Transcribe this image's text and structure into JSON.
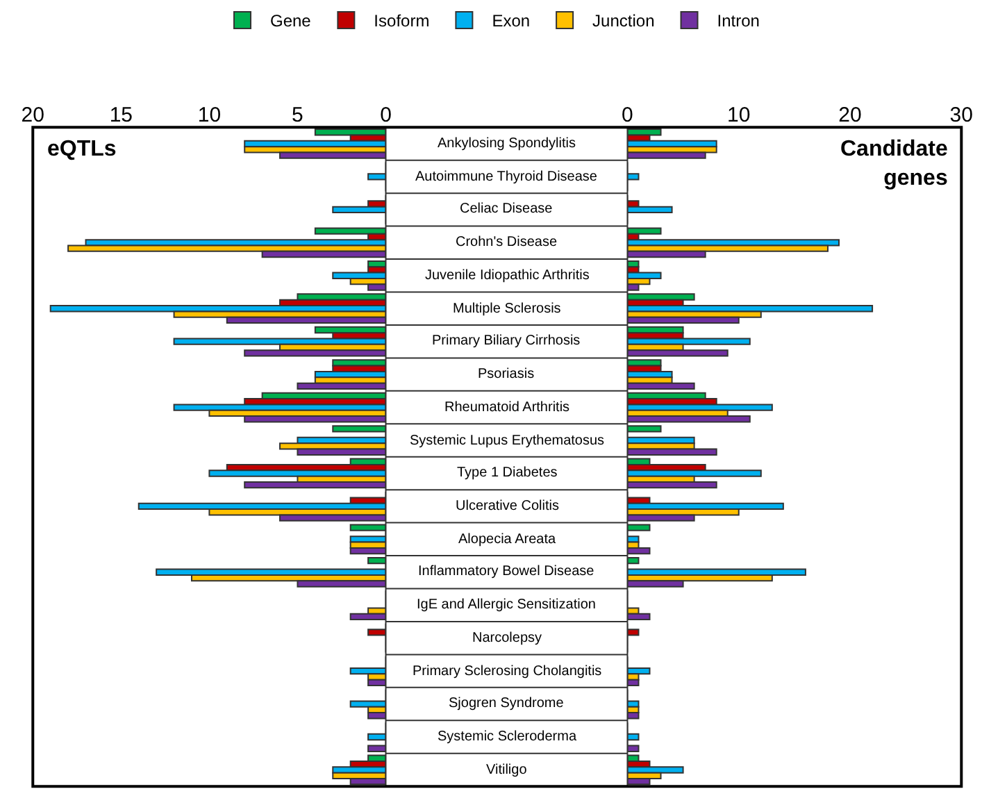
{
  "chart_data": [
    {
      "type": "bar",
      "orientation": "horizontal",
      "title": "eQTLs",
      "legend": "top",
      "categories": [
        "Ankylosing Spondylitis",
        "Autoimmune Thyroid Disease",
        "Celiac Disease",
        "Crohn's Disease",
        "Juvenile Idiopathic Arthritis",
        "Multiple Sclerosis",
        "Primary Biliary Cirrhosis",
        "Psoriasis",
        "Rheumatoid Arthritis",
        "Systemic Lupus Erythematosus",
        "Type 1 Diabetes",
        "Ulcerative Colitis",
        "Alopecia Areata",
        "Inflammatory Bowel Disease",
        "IgE and Allergic Sensitization",
        "Narcolepsy",
        "Primary Sclerosing Cholangitis",
        "Sjogren Syndrome",
        "Systemic Scleroderma",
        "Vitiligo"
      ],
      "xlim": [
        20,
        0
      ],
      "xticks": [
        0,
        5,
        10,
        15,
        20
      ],
      "series": [
        {
          "name": "Gene",
          "color": "#00b050",
          "values": [
            4,
            0,
            0,
            4,
            1,
            5,
            4,
            3,
            7,
            3,
            2,
            0,
            2,
            1,
            0,
            0,
            0,
            0,
            0,
            1
          ]
        },
        {
          "name": "Isoform",
          "color": "#c00000",
          "values": [
            2,
            0,
            1,
            1,
            1,
            6,
            3,
            3,
            8,
            0,
            9,
            2,
            0,
            0,
            0,
            1,
            0,
            0,
            0,
            2
          ]
        },
        {
          "name": "Exon",
          "color": "#00b0f0",
          "values": [
            8,
            1,
            3,
            17,
            3,
            19,
            12,
            4,
            12,
            5,
            10,
            14,
            2,
            13,
            0,
            0,
            2,
            2,
            1,
            3
          ]
        },
        {
          "name": "Junction",
          "color": "#ffc000",
          "values": [
            8,
            0,
            0,
            18,
            2,
            12,
            6,
            4,
            10,
            6,
            5,
            10,
            2,
            11,
            1,
            0,
            1,
            1,
            0,
            3
          ]
        },
        {
          "name": "Intron",
          "color": "#7030a0",
          "values": [
            6,
            0,
            0,
            7,
            1,
            9,
            8,
            5,
            8,
            5,
            8,
            6,
            2,
            5,
            2,
            0,
            1,
            1,
            1,
            2
          ]
        }
      ]
    },
    {
      "type": "bar",
      "orientation": "horizontal",
      "title": "Candidate genes",
      "tick_labels": "x",
      "categories": [
        null,
        null,
        null,
        null,
        null,
        null,
        null,
        null,
        null,
        null,
        null,
        null,
        null,
        null,
        null,
        null,
        null,
        null,
        null,
        null
      ],
      "xlim": [
        0,
        30
      ],
      "xticks": [
        0,
        10,
        20,
        30
      ],
      "series": [
        {
          "color": "#00b050",
          "values": [
            3,
            0,
            0,
            3,
            1,
            6,
            5,
            3,
            7,
            3,
            2,
            0,
            2,
            1,
            0,
            0,
            0,
            0,
            0,
            1
          ]
        },
        {
          "color": "#c00000",
          "values": [
            2,
            0,
            1,
            1,
            1,
            5,
            5,
            3,
            8,
            0,
            7,
            2,
            0,
            0,
            0,
            1,
            0,
            0,
            0,
            2
          ]
        },
        {
          "color": "#00b0f0",
          "values": [
            8,
            1,
            4,
            19,
            3,
            22,
            11,
            4,
            13,
            6,
            12,
            14,
            1,
            16,
            0,
            0,
            2,
            1,
            1,
            5
          ]
        },
        {
          "color": "#ffc000",
          "values": [
            8,
            0,
            0,
            18,
            2,
            12,
            5,
            4,
            9,
            6,
            6,
            10,
            1,
            13,
            1,
            0,
            1,
            1,
            0,
            3
          ]
        },
        {
          "color": "#7030a0",
          "values": [
            7,
            0,
            0,
            7,
            1,
            10,
            9,
            6,
            11,
            8,
            8,
            6,
            2,
            5,
            2,
            0,
            1,
            1,
            1,
            2
          ]
        }
      ]
    }
  ]
}
